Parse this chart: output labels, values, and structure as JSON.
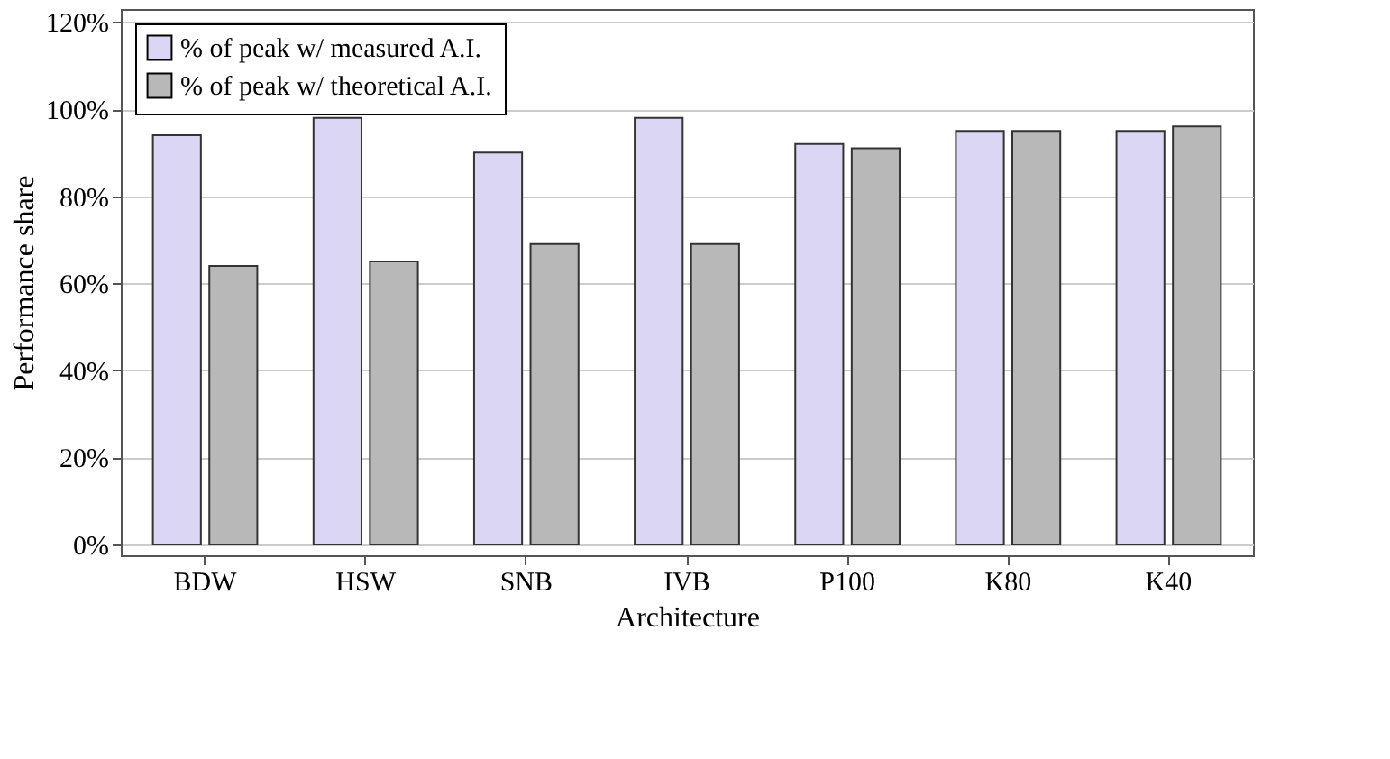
{
  "chart_data": {
    "type": "bar",
    "xlabel": "Architecture",
    "ylabel": "Performance share",
    "categories": [
      "BDW",
      "HSW",
      "SNB",
      "IVB",
      "P100",
      "K80",
      "K40"
    ],
    "series": [
      {
        "name": "% of peak w/ measured A.I.",
        "color": "#dcd6f5",
        "values": [
          94,
          98,
          90,
          98,
          92,
          95,
          95
        ]
      },
      {
        "name": "% of peak w/ theoretical A.I.",
        "color": "#b8b8b8",
        "values": [
          64,
          65,
          69,
          69,
          91,
          95,
          96
        ]
      }
    ],
    "ylim": [
      -2.5,
      123
    ],
    "yticks": [
      {
        "value": 0,
        "label": "0%"
      },
      {
        "value": 20,
        "label": "20%"
      },
      {
        "value": 40,
        "label": "40%"
      },
      {
        "value": 60,
        "label": "60%"
      },
      {
        "value": 80,
        "label": "80%"
      },
      {
        "value": 100,
        "label": "100%"
      },
      {
        "value": 120,
        "label": "120%"
      }
    ],
    "grid": "y",
    "legend": "top left"
  }
}
